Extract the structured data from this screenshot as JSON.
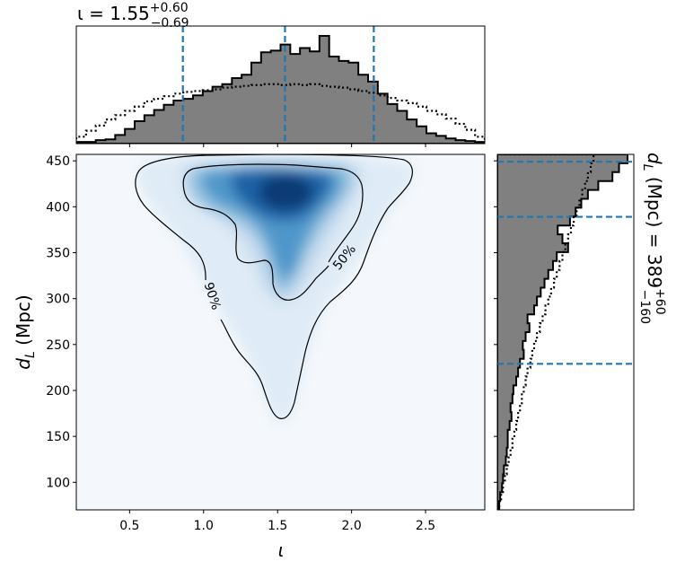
{
  "chart_data": {
    "type": "corner",
    "top_title": {
      "base": "ι = 1.55",
      "sup": "+0.60",
      "sub": "−0.69"
    },
    "right_title": {
      "base": "d",
      "base_sub": "L",
      "rest": " (Mpc) = 389",
      "sup": "+60",
      "sub": "−160"
    },
    "xlabel": "ι",
    "ylabel": {
      "base": "d",
      "base_sub": "L",
      "rest": " (Mpc)"
    },
    "xlim": [
      0.14,
      2.9
    ],
    "ylim": [
      70,
      457
    ],
    "xticks": [
      "0.5",
      "1.0",
      "1.5",
      "2.0",
      "2.5"
    ],
    "yticks": [
      "100",
      "150",
      "200",
      "250",
      "300",
      "350",
      "400",
      "450"
    ],
    "iota_quantiles": [
      0.86,
      1.55,
      2.15
    ],
    "dl_quantiles": [
      229,
      389,
      449
    ],
    "contour_labels": [
      "50%",
      "90%"
    ],
    "colormap": [
      "#f7fbff",
      "#deebf7",
      "#c6dbef",
      "#9ecae1",
      "#6baed6",
      "#4292c6",
      "#2171b5",
      "#08519c",
      "#08306b"
    ],
    "quantile_color": "#1f77b4",
    "hist_fill": "#808080",
    "iota_hist": {
      "edges": [
        0.14,
        2.9
      ],
      "posterior": [
        0.2,
        0.2,
        0.4,
        0.5,
        1.0,
        1.7,
        2.6,
        3.3,
        3.9,
        4.5,
        5.0,
        5.2,
        5.6,
        6.1,
        6.6,
        6.9,
        7.6,
        8.0,
        9.4,
        10.6,
        10.8,
        11.5,
        10.4,
        11.1,
        10.7,
        12.5,
        10.1,
        9.6,
        9.4,
        8.0,
        7.2,
        5.8,
        4.6,
        3.8,
        2.8,
        2.0,
        1.2,
        0.9,
        0.6,
        0.4,
        0.3,
        0.2
      ],
      "prior": [
        0.8,
        1.5,
        2.1,
        2.8,
        3.3,
        3.8,
        4.3,
        4.9,
        5.2,
        5.5,
        5.8,
        6.0,
        6.1,
        6.2,
        6.3,
        6.5,
        6.6,
        6.7,
        6.8,
        6.9,
        6.9,
        6.8,
        6.9,
        6.8,
        6.9,
        6.7,
        6.6,
        6.5,
        6.3,
        6.1,
        5.9,
        5.6,
        5.3,
        5.0,
        4.7,
        4.3,
        3.8,
        3.4,
        2.9,
        2.3,
        1.6,
        0.8
      ]
    },
    "dl_hist": {
      "edges": [
        70,
        457
      ],
      "posterior": [
        0.2,
        0.3,
        0.5,
        0.6,
        0.7,
        0.9,
        1.0,
        1.1,
        1.1,
        1.3,
        1.5,
        1.4,
        1.6,
        1.7,
        2.0,
        2.2,
        2.4,
        2.8,
        2.7,
        3.0,
        3.4,
        3.2,
        3.9,
        4.2,
        4.6,
        5.0,
        5.4,
        5.9,
        6.3,
        7.5,
        6.9,
        6.4,
        7.7,
        8.3,
        8.9,
        9.6,
        10.7,
        12.2,
        12.9,
        13.8
      ],
      "prior": [
        0.2,
        0.4,
        0.6,
        0.8,
        1.0,
        1.2,
        1.4,
        1.6,
        1.8,
        2.0,
        2.2,
        2.4,
        2.6,
        2.8,
        3.0,
        3.2,
        3.5,
        3.7,
        3.9,
        4.2,
        4.5,
        4.8,
        5.1,
        5.4,
        5.7,
        6.0,
        6.3,
        6.6,
        6.9,
        7.2,
        7.5,
        7.8,
        8.1,
        8.4,
        8.7,
        9.0,
        9.3,
        9.6,
        9.9,
        10.2
      ]
    }
  }
}
